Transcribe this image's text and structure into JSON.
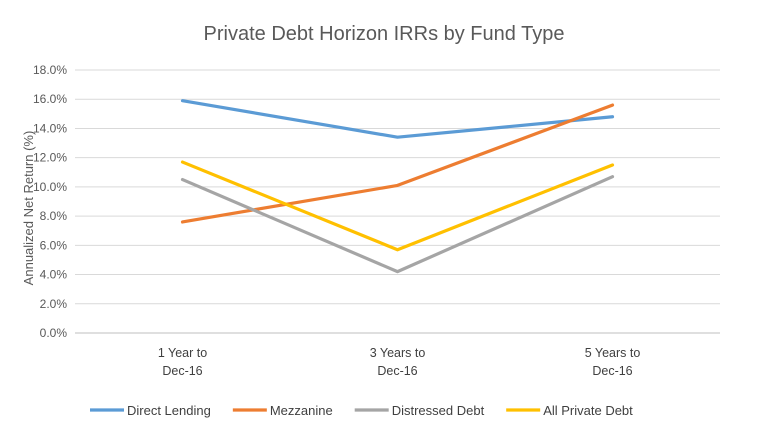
{
  "chart_data": {
    "type": "line",
    "title": "Private Debt Horizon IRRs by Fund Type",
    "ylabel": "Annualized Net Return (%)",
    "xlabel": "",
    "categories": [
      [
        "1 Year to",
        "Dec-16"
      ],
      [
        "3 Years to",
        "Dec-16"
      ],
      [
        "5 Years to",
        "Dec-16"
      ]
    ],
    "ylim": [
      0,
      18
    ],
    "yticks": [
      "0.0%",
      "2.0%",
      "4.0%",
      "6.0%",
      "8.0%",
      "10.0%",
      "12.0%",
      "14.0%",
      "16.0%",
      "18.0%"
    ],
    "grid": true,
    "legend_position": "bottom",
    "series": [
      {
        "name": "Direct Lending",
        "color": "#5b9bd5",
        "values": [
          15.9,
          13.4,
          14.8
        ]
      },
      {
        "name": "Mezzanine",
        "color": "#ed7d31",
        "values": [
          7.6,
          10.1,
          15.6
        ]
      },
      {
        "name": "Distressed Debt",
        "color": "#a5a5a5",
        "values": [
          10.5,
          4.2,
          10.7
        ]
      },
      {
        "name": "All Private Debt",
        "color": "#ffc000",
        "values": [
          11.7,
          5.7,
          11.5
        ]
      }
    ]
  }
}
